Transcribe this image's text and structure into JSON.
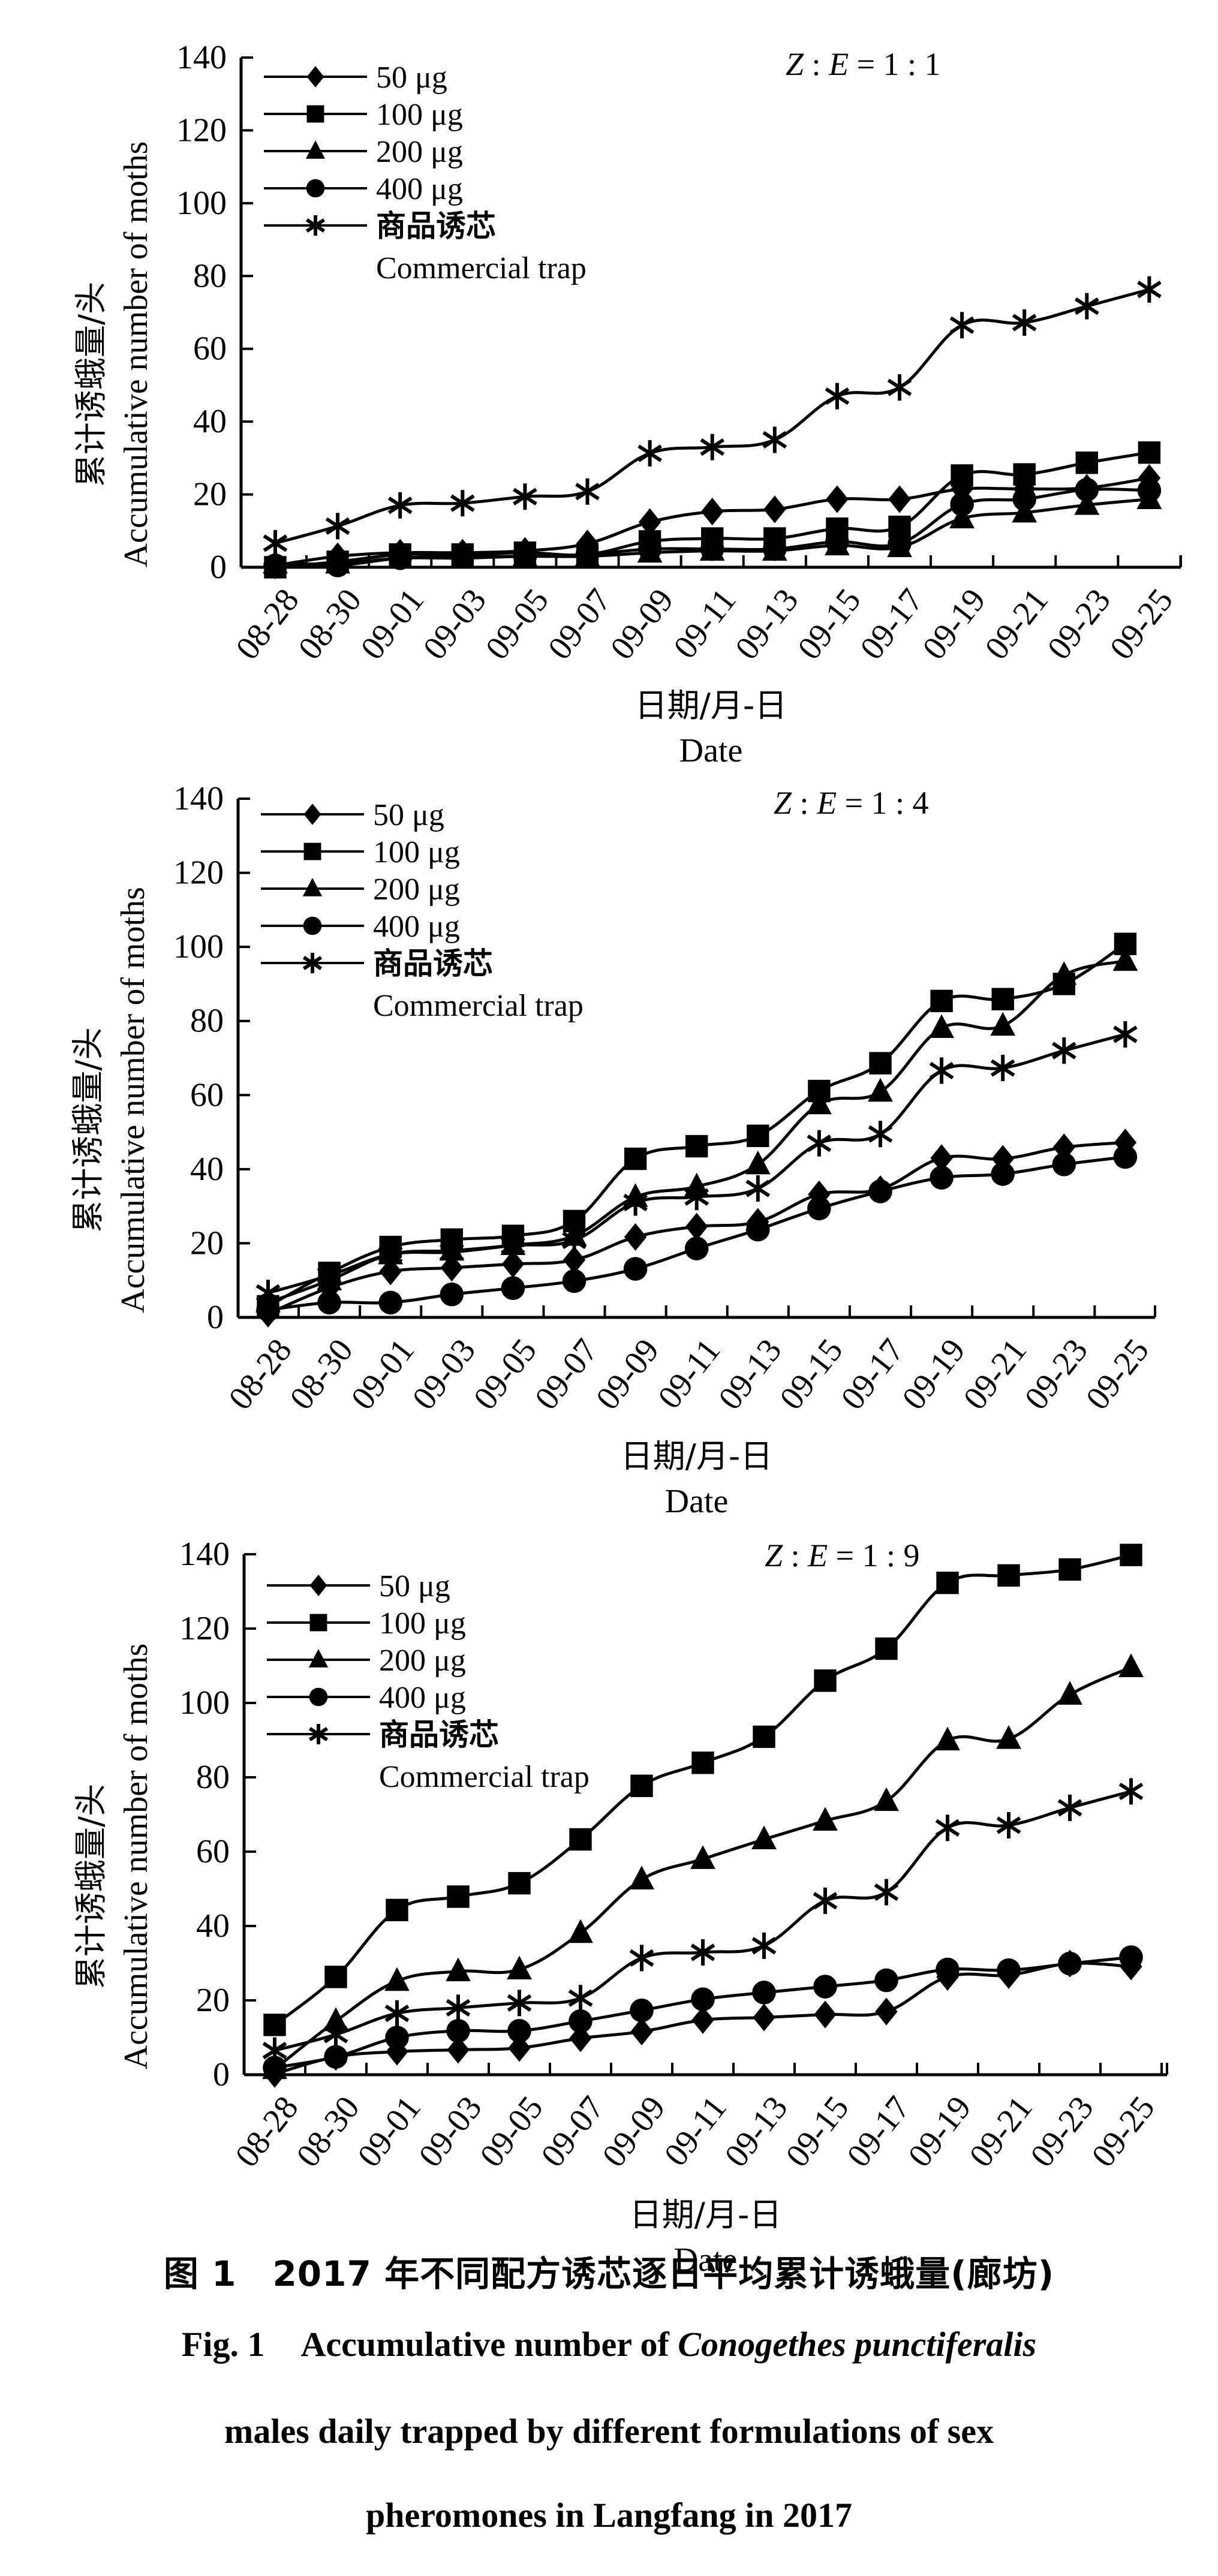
{
  "chart_data": [
    {
      "type": "line",
      "title": "Z : E = 1 : 1",
      "ratio_parts": {
        "z": "Z",
        "sep": " : ",
        "e": "E",
        "eq": " = 1 : 1"
      },
      "xlabel_cn": "日期/月-日",
      "xlabel_en": "Date",
      "ylabel_cn": "累计诱蛾量/头",
      "ylabel_en": "Accumulative number of moths",
      "ylim": [
        0,
        140
      ],
      "yticks": [
        0,
        20,
        40,
        60,
        80,
        100,
        120,
        140
      ],
      "legend_position": "top-left",
      "categories": [
        "08-28",
        "08-30",
        "09-01",
        "09-03",
        "09-05",
        "09-07",
        "09-09",
        "09-11",
        "09-13",
        "09-15",
        "09-17",
        "09-19",
        "09-21",
        "09-23",
        "09-25"
      ],
      "series": [
        {
          "name": "50 μg",
          "marker": "diamond",
          "values": [
            0.5,
            3,
            4,
            4,
            4.5,
            6.5,
            12.4,
            15.3,
            15.9,
            18.7,
            18.7,
            21.5,
            21.5,
            21.8,
            24.5
          ]
        },
        {
          "name": "100 μg",
          "marker": "square",
          "values": [
            0,
            1.5,
            3.5,
            3.5,
            4,
            3.5,
            7.1,
            7.9,
            7.9,
            10.6,
            11.1,
            25.2,
            25.5,
            28.7,
            31.5
          ]
        },
        {
          "name": "200 μg",
          "marker": "triangle",
          "values": [
            1,
            1,
            2.5,
            2.5,
            3,
            3,
            4,
            4.5,
            4.5,
            6,
            5.5,
            13.4,
            15,
            17.1,
            18.7
          ]
        },
        {
          "name": "400 μg",
          "marker": "circle",
          "values": [
            0.5,
            0.5,
            2.5,
            3,
            3,
            3.5,
            5,
            5,
            5,
            7,
            6.5,
            17.3,
            18.7,
            21.3,
            21.1
          ]
        },
        {
          "name": "商品诱芯 Commercial trap",
          "marker": "asterisk",
          "values": [
            6.6,
            11.3,
            17,
            17.6,
            19.4,
            20.8,
            31.3,
            33,
            35,
            47,
            49.4,
            66.5,
            67.2,
            71.7,
            76.3
          ]
        }
      ]
    },
    {
      "type": "line",
      "title": "Z : E = 1 : 4",
      "ratio_parts": {
        "z": "Z",
        "sep": " : ",
        "e": "E",
        "eq": " = 1 : 4"
      },
      "xlabel_cn": "日期/月-日",
      "xlabel_en": "Date",
      "ylabel_cn": "累计诱蛾量/头",
      "ylabel_en": "Accumulative number of moths",
      "ylim": [
        0,
        140
      ],
      "yticks": [
        0,
        20,
        40,
        60,
        80,
        100,
        120,
        140
      ],
      "legend_position": "top-left",
      "categories": [
        "08-28",
        "08-30",
        "09-01",
        "09-03",
        "09-05",
        "09-07",
        "09-09",
        "09-11",
        "09-13",
        "09-15",
        "09-17",
        "09-19",
        "09-21",
        "09-23",
        "09-25"
      ],
      "series": [
        {
          "name": "50 μg",
          "marker": "diamond",
          "values": [
            1,
            8,
            12.4,
            13.4,
            14.4,
            15.5,
            21.7,
            24.5,
            25.8,
            33.2,
            34.6,
            43,
            42.8,
            45.9,
            47.2
          ]
        },
        {
          "name": "100 μg",
          "marker": "square",
          "values": [
            3,
            12,
            19,
            21,
            22,
            26,
            42.8,
            46.2,
            49,
            61.1,
            68.6,
            85.4,
            85.9,
            90,
            100.8
          ]
        },
        {
          "name": "200 μg",
          "marker": "triangle",
          "values": [
            4,
            10,
            17,
            18,
            19.5,
            22,
            32.5,
            35.3,
            41.3,
            57.5,
            60.9,
            78.1,
            78.7,
            92.4,
            96.2
          ]
        },
        {
          "name": "400 μg",
          "marker": "circle",
          "values": [
            2,
            4,
            4,
            6.2,
            7.9,
            9.8,
            13.1,
            18.6,
            23.7,
            29.4,
            34,
            37.7,
            38.7,
            41.3,
            43.3
          ]
        },
        {
          "name": "商品诱芯 Commercial trap",
          "marker": "asterisk",
          "values": [
            6.6,
            11.3,
            17,
            17.6,
            19.4,
            20.8,
            31,
            32.5,
            34.8,
            47,
            49.5,
            66.6,
            67.3,
            72,
            76.4
          ]
        }
      ]
    },
    {
      "type": "line",
      "title": "Z : E = 1 : 9",
      "ratio_parts": {
        "z": "Z",
        "sep": " : ",
        "e": "E",
        "eq": " = 1 : 9"
      },
      "xlabel_cn": "日期/月-日",
      "xlabel_en": "Date",
      "ylabel_cn": "累计诱蛾量/头",
      "ylabel_en": "Accumulative number of moths",
      "ylim": [
        0,
        140
      ],
      "yticks": [
        0,
        20,
        40,
        60,
        80,
        100,
        120,
        140
      ],
      "legend_position": "top-left",
      "categories": [
        "08-28",
        "08-30",
        "09-01",
        "09-03",
        "09-05",
        "09-07",
        "09-09",
        "09-11",
        "09-13",
        "09-15",
        "09-17",
        "09-19",
        "09-21",
        "09-23",
        "09-25"
      ],
      "series": [
        {
          "name": "50 μg",
          "marker": "diamond",
          "values": [
            0.2,
            4.8,
            6.2,
            6.7,
            7.2,
            9.8,
            11.6,
            14.7,
            15.4,
            16.2,
            17,
            26.3,
            26.8,
            29.9,
            29.1
          ]
        },
        {
          "name": "100 μg",
          "marker": "square",
          "values": [
            13.4,
            26.3,
            44.3,
            47.9,
            51.5,
            63.3,
            77.7,
            83.9,
            90.9,
            106,
            114.6,
            132.3,
            134.3,
            135.9,
            139.8
          ]
        },
        {
          "name": "200 μg",
          "marker": "triangle",
          "values": [
            1.5,
            14.4,
            25.2,
            27.8,
            28.3,
            38.1,
            52.5,
            58,
            63.3,
            68.3,
            73.6,
            89.9,
            90.3,
            102.2,
            109.6
          ]
        },
        {
          "name": "400 μg",
          "marker": "circle",
          "values": [
            1.9,
            4.8,
            10,
            11.8,
            11.8,
            14.4,
            17.3,
            20.3,
            22.1,
            23.7,
            25.4,
            28.3,
            28.1,
            29.9,
            31.6
          ]
        },
        {
          "name": "商品诱芯 Commercial trap",
          "marker": "asterisk",
          "values": [
            6.5,
            10.8,
            16.5,
            18,
            19.3,
            20.6,
            31.4,
            32.9,
            34.7,
            46.8,
            49.1,
            66.4,
            67.1,
            71.8,
            76.2
          ]
        }
      ]
    }
  ],
  "legend": {
    "items": [
      {
        "label": "50 μg",
        "marker": "diamond"
      },
      {
        "label": "100 μg",
        "marker": "square"
      },
      {
        "label": "200 μg",
        "marker": "triangle"
      },
      {
        "label": "400 μg",
        "marker": "circle"
      },
      {
        "label": "商品诱芯",
        "label2": "Commercial trap",
        "marker": "asterisk"
      }
    ]
  },
  "caption": {
    "cn_fig": "图 1",
    "cn_text": "2017 年不同配方诱芯逐日平均累计诱蛾量(廊坊)",
    "en_fig": "Fig. 1",
    "en_line1_pre": "Accumulative number of ",
    "en_species": "Conogethes punctiferalis",
    "en_line2": "males daily trapped by different formulations of sex",
    "en_line3": "pheromones in Langfang in 2017"
  }
}
